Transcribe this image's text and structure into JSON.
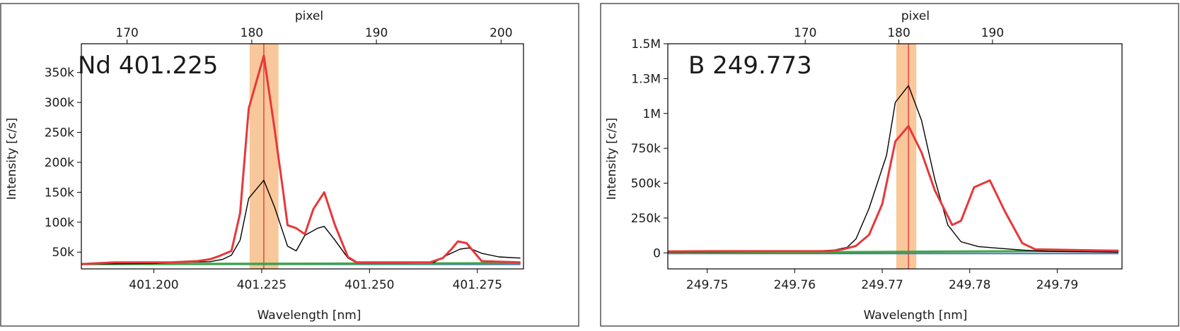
{
  "chart_data": [
    {
      "type": "line",
      "label": "Nd 401.225",
      "xlabel": "Wavelength [nm]",
      "ylabel": "Intensity [c/s]",
      "top_axis_label": "pixel",
      "xlim": [
        401.1832,
        401.2857
      ],
      "ylim": [
        22000,
        398000
      ],
      "x_ticks": [
        401.2,
        401.225,
        401.25,
        401.275
      ],
      "x_tick_labels": [
        "401.200",
        "401.225",
        "401.250",
        "401.275"
      ],
      "y_ticks": [
        50000,
        100000,
        150000,
        200000,
        250000,
        300000,
        350000
      ],
      "y_tick_labels": [
        "50k",
        "100k",
        "150k",
        "200k",
        "250k",
        "300k",
        "350k"
      ],
      "top_ticks": [
        170,
        180,
        190,
        200
      ],
      "top_tick_labels": [
        "170",
        "180",
        "190",
        "200"
      ],
      "pixel_ref": [
        180,
        401.2227,
        190,
        401.2516
      ],
      "center_wavelength": 401.2255,
      "band": [
        401.2222,
        401.2289
      ],
      "grid": false,
      "legend": "none",
      "colors": {
        "measured": "#e8373a",
        "reference": "#000000",
        "baseline_green": "#3aa83a",
        "baseline_blue": "#4a6fd0",
        "band": "#f8c89a",
        "center_line": "#e8373a"
      },
      "series": [
        {
          "key": "measured",
          "x": [
            401.183,
            401.191,
            401.204,
            401.21,
            401.213,
            401.215,
            401.218,
            401.22,
            401.222,
            401.2255,
            401.228,
            401.23,
            401.231,
            401.233,
            401.235,
            401.237,
            401.2395,
            401.242,
            401.245,
            401.247,
            401.25,
            401.258,
            401.264,
            401.267,
            401.269,
            401.2705,
            401.2725,
            401.276,
            401.285
          ],
          "y": [
            30000,
            33000,
            33000,
            35000,
            38000,
            43000,
            52000,
            115000,
            290000,
            378000,
            255000,
            150000,
            95000,
            90000,
            80000,
            122000,
            150000,
            95000,
            42000,
            33000,
            33000,
            33000,
            33000,
            40000,
            55000,
            68000,
            65000,
            35000,
            33000
          ]
        },
        {
          "key": "reference",
          "x": [
            401.183,
            401.2,
            401.206,
            401.213,
            401.216,
            401.218,
            401.22,
            401.222,
            401.2255,
            401.228,
            401.231,
            401.233,
            401.235,
            401.238,
            401.2395,
            401.242,
            401.245,
            401.247,
            401.25,
            401.258,
            401.265,
            401.268,
            401.271,
            401.273,
            401.276,
            401.28,
            401.285
          ],
          "y": [
            30000,
            31000,
            33000,
            34000,
            38000,
            45000,
            70000,
            140000,
            170000,
            125000,
            60000,
            52000,
            78000,
            90000,
            93000,
            70000,
            40000,
            32000,
            32000,
            32000,
            33000,
            45000,
            55000,
            57000,
            48000,
            42000,
            40000
          ]
        },
        {
          "key": "baseline_green",
          "x": [
            401.183,
            401.285
          ],
          "y": [
            30000,
            31500
          ]
        },
        {
          "key": "baseline_blue",
          "x": [
            401.183,
            401.285
          ],
          "y": [
            29500,
            29500
          ]
        }
      ]
    },
    {
      "type": "line",
      "label": "B 249.773",
      "xlabel": "Wavelength [nm]",
      "ylabel": "Intensity [c/s]",
      "top_axis_label": "pixel",
      "xlim": [
        249.7455,
        249.7974
      ],
      "ylim": [
        -115000,
        1500000
      ],
      "x_ticks": [
        249.75,
        249.76,
        249.77,
        249.78,
        249.79
      ],
      "x_tick_labels": [
        "249.75",
        "249.76",
        "249.77",
        "249.78",
        "249.79"
      ],
      "y_ticks": [
        0,
        250000,
        500000,
        750000,
        1000000,
        1250000,
        1500000
      ],
      "y_tick_labels": [
        "0",
        "250k",
        "500k",
        "750k",
        "1M",
        "1.3M",
        "1.5M"
      ],
      "top_ticks": [
        170,
        180,
        190
      ],
      "top_tick_labels": [
        "170",
        "180",
        "190"
      ],
      "pixel_ref": [
        180,
        249.7719,
        190,
        249.7826
      ],
      "center_wavelength": 249.773,
      "band": [
        249.7716,
        249.7739
      ],
      "grid": false,
      "legend": "none",
      "colors": {
        "measured": "#e8373a",
        "reference": "#000000",
        "baseline_green": "#3aa83a",
        "baseline_blue": "#4a6fd0",
        "band": "#f8c89a",
        "center_line": "#e8373a"
      },
      "series": [
        {
          "key": "measured",
          "x": [
            249.7455,
            249.7505,
            249.753,
            249.764,
            249.7655,
            249.767,
            249.7685,
            249.77,
            249.7715,
            249.773,
            249.7745,
            249.776,
            249.778,
            249.779,
            249.7805,
            249.7823,
            249.784,
            249.786,
            249.7875,
            249.797
          ],
          "y": [
            10000,
            12000,
            12000,
            12000,
            25000,
            50000,
            130000,
            350000,
            800000,
            910000,
            720000,
            450000,
            200000,
            230000,
            470000,
            520000,
            300000,
            70000,
            25000,
            15000
          ]
        },
        {
          "key": "reference",
          "x": [
            249.7455,
            249.755,
            249.762,
            249.7645,
            249.766,
            249.767,
            249.7685,
            249.7705,
            249.7715,
            249.773,
            249.7745,
            249.776,
            249.7775,
            249.779,
            249.781,
            249.783,
            249.786,
            249.789,
            249.797
          ],
          "y": [
            5000,
            8000,
            12000,
            20000,
            40000,
            100000,
            320000,
            700000,
            1080000,
            1200000,
            950000,
            530000,
            200000,
            80000,
            45000,
            35000,
            20000,
            10000,
            5000
          ]
        },
        {
          "key": "baseline_green",
          "x": [
            249.7455,
            249.797
          ],
          "y": [
            0,
            15000
          ]
        },
        {
          "key": "baseline_blue",
          "x": [
            249.7455,
            249.797
          ],
          "y": [
            -5000,
            -5000
          ]
        }
      ]
    }
  ]
}
